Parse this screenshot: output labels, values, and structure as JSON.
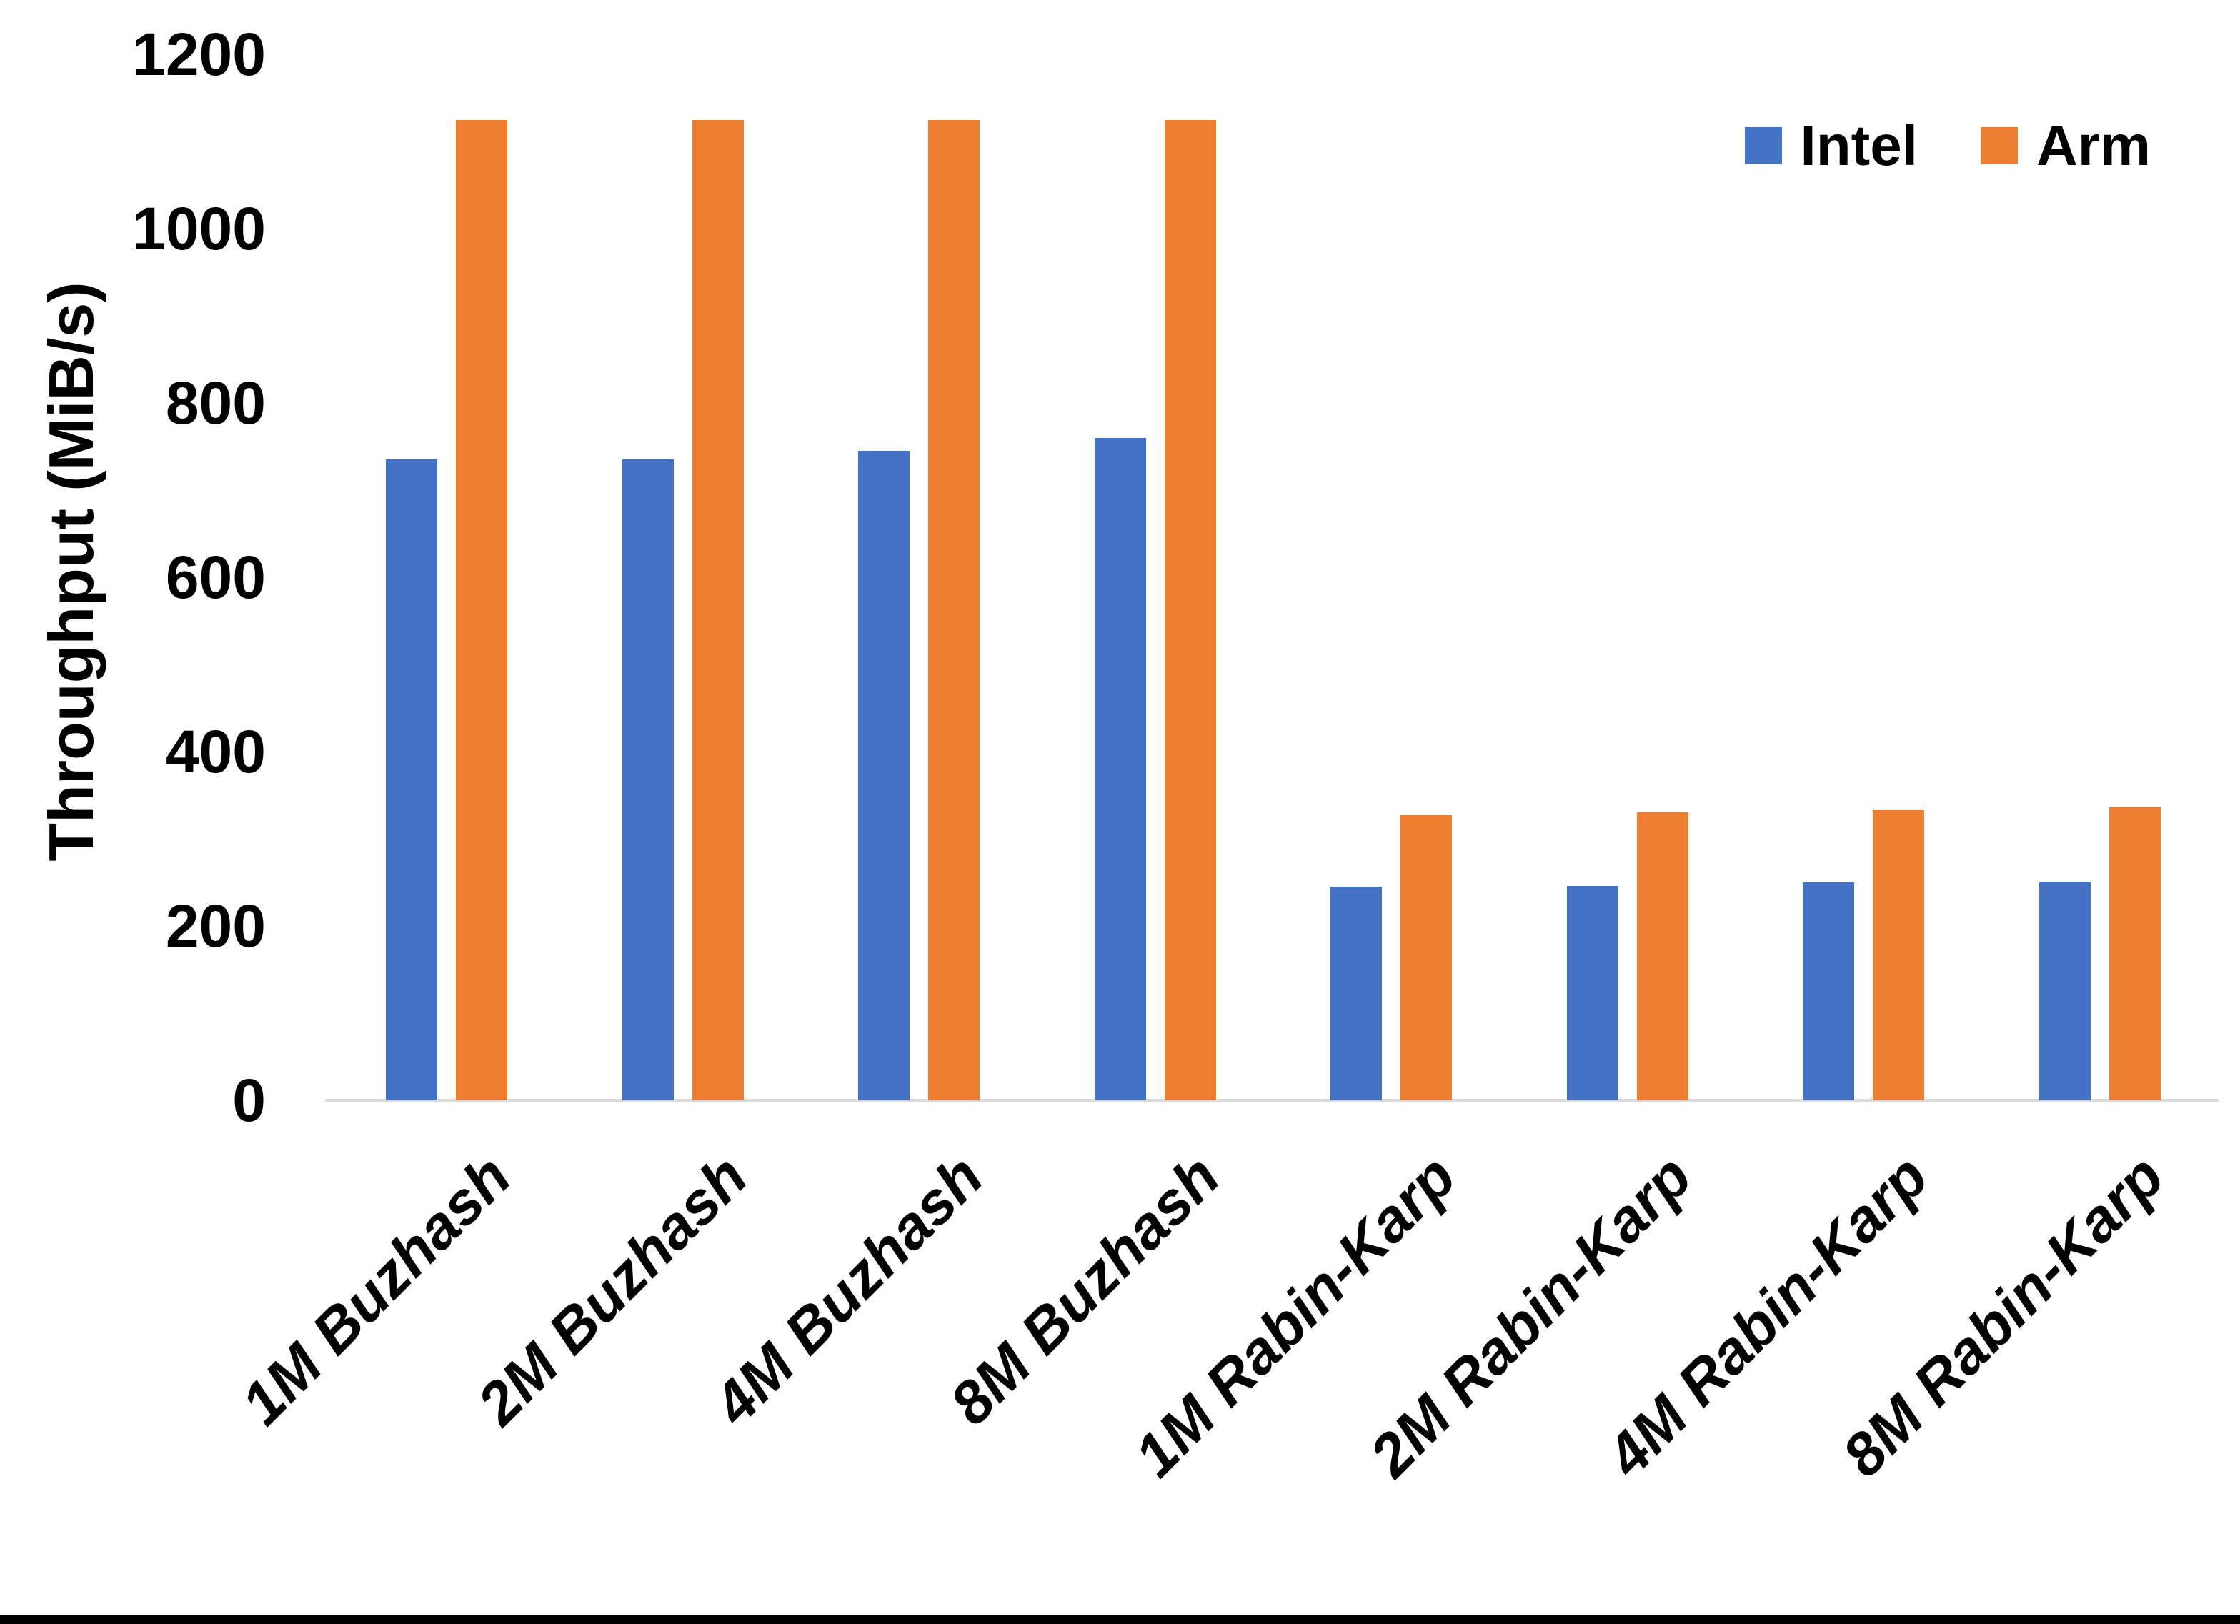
{
  "chart_data": {
    "type": "bar",
    "title": "",
    "xlabel": "",
    "ylabel": "Throughput (MiB/s)",
    "ylim": [
      0,
      1200
    ],
    "yticks": [
      0,
      200,
      400,
      600,
      800,
      1000,
      1200
    ],
    "grid": false,
    "legend_position": "top-right",
    "categories": [
      "1M Buzhash",
      "2M Buzhash",
      "4M Buzhash",
      "8M Buzhash",
      "1M Rabin-Karp",
      "2M Rabin-Karp",
      "4M Rabin-Karp",
      "8M Rabin-Karp"
    ],
    "series": [
      {
        "name": "Intel",
        "color": "#4472C4",
        "values": [
          735,
          735,
          745,
          760,
          245,
          246,
          250,
          251
        ]
      },
      {
        "name": "Arm",
        "color": "#ED7D31",
        "values": [
          1125,
          1125,
          1125,
          1125,
          327,
          330,
          333,
          336
        ]
      }
    ]
  },
  "axes": {
    "y_title": "Throughput (MiB/s)"
  },
  "legend": {
    "items": [
      {
        "label": "Intel",
        "color": "#4472C4"
      },
      {
        "label": "Arm",
        "color": "#ED7D31"
      }
    ]
  },
  "colors": {
    "background": "#FFFFFF",
    "axis_line": "#D9D9D9",
    "text": "#000000",
    "bottom_bar": "#000000"
  }
}
